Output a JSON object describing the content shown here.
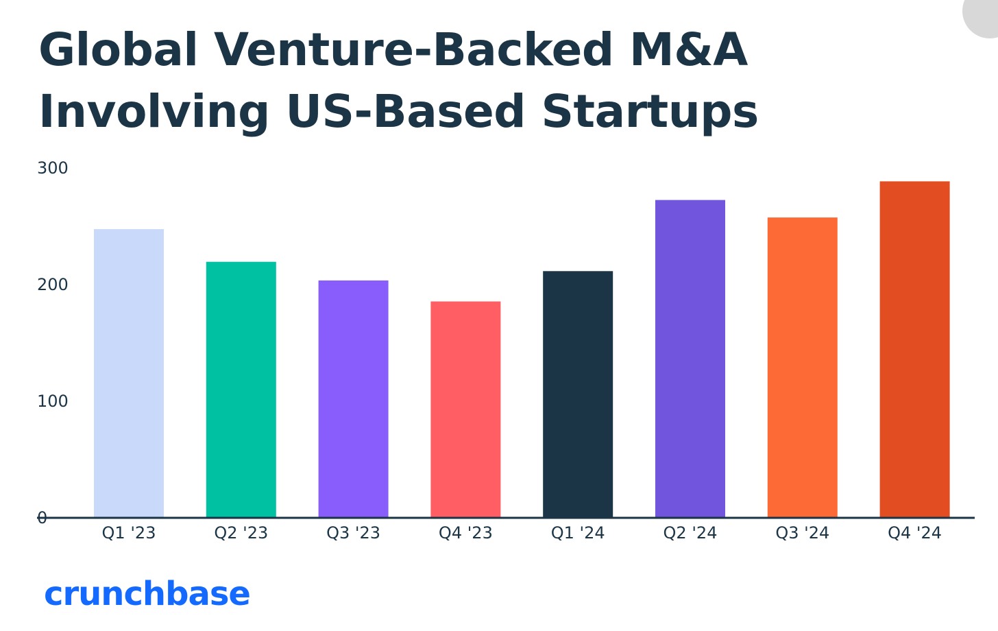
{
  "title": "Global Venture-Backed M&A Involving US-Based Startups",
  "brand": {
    "name": "crunchbase",
    "color": "#146aff"
  },
  "chart_data": {
    "type": "bar",
    "title": "Global Venture-Backed M&A Involving US-Based Startups",
    "xlabel": "",
    "ylabel": "",
    "ylim": [
      0,
      300
    ],
    "yticks": [
      0,
      100,
      200,
      300
    ],
    "grid": false,
    "categories": [
      "Q1 '23",
      "Q2 '23",
      "Q3 '23",
      "Q4 '23",
      "Q1 '24",
      "Q2 '24",
      "Q3 '24",
      "Q4 '24"
    ],
    "values": [
      247,
      219,
      203,
      185,
      211,
      272,
      257,
      288
    ],
    "colors": [
      "#c9d9fa",
      "#00c1a1",
      "#895dfc",
      "#ff5f64",
      "#1b3446",
      "#7155dc",
      "#fd6a36",
      "#e24e22"
    ],
    "axis_color": "#1b3446"
  }
}
